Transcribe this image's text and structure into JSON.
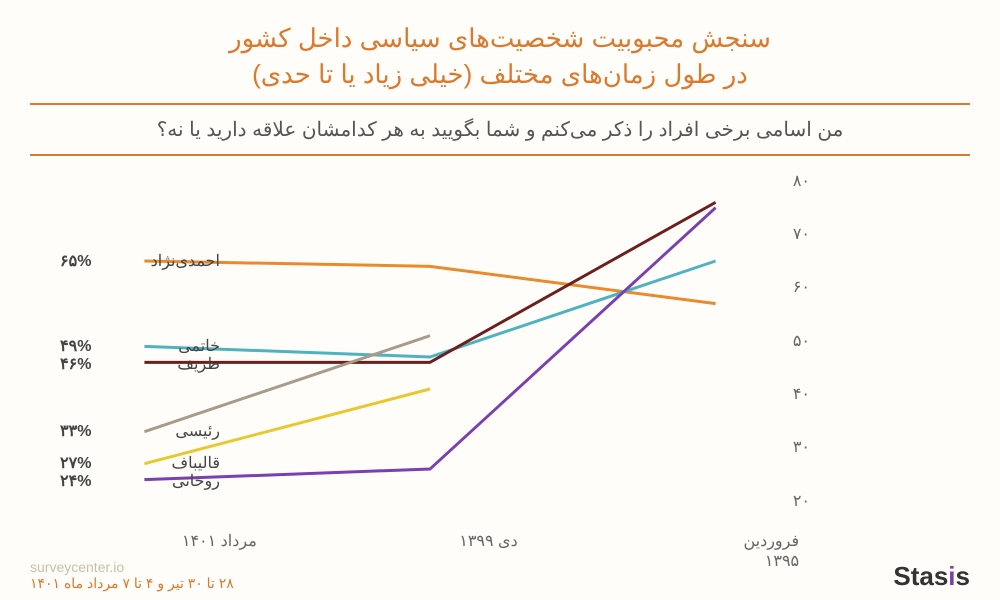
{
  "title_line1": "سنجش محبوبیت شخصیت‌های سیاسی داخل کشور",
  "title_line2": "در طول زمان‌های مختلف (خیلی زیاد یا تا حدی)",
  "subtitle": "من اسامی برخی افراد را ذکر می‌کنم و شما بگویید به هر کدامشان علاقه دارید یا نه؟",
  "footer_url": "surveycenter.io",
  "footer_date": "۲۸ تا ۳۰ تیر و ۴ تا ۷ مرداد ماه ۱۴۰۱",
  "logo_text": "Stasis",
  "chart": {
    "type": "line",
    "ylim": [
      20,
      80
    ],
    "ytick_step": 10,
    "yticks": [
      "۲۰",
      "۳۰",
      "۴۰",
      "۵۰",
      "۶۰",
      "۷۰",
      "۸۰"
    ],
    "x_categories": [
      "فروردین ۱۳۹۵",
      "دی ۱۳۹۹",
      "مرداد ۱۴۰۱"
    ],
    "x_positions_pct": [
      8,
      50,
      92
    ],
    "background_color": "#fefdf9",
    "line_width": 3,
    "title_color": "#d97a2e",
    "text_color": "#555555",
    "series": [
      {
        "name": "احمدی‌نژاد",
        "color": "#e88b2d",
        "values": [
          57,
          64,
          65
        ],
        "label_pct": "۶۵%",
        "label_y_offset": 0
      },
      {
        "name": "خاتمی",
        "color": "#4fb3bf",
        "values": [
          65,
          47,
          49
        ],
        "label_pct": "۴۹%",
        "label_y_offset": 0
      },
      {
        "name": "ظریف",
        "color": "#6b1f1f",
        "values": [
          76,
          46,
          46
        ],
        "label_pct": "۴۶%",
        "label_y_offset": 2
      },
      {
        "name": "رئیسی",
        "color": "#a89b87",
        "values": [
          null,
          51,
          33
        ],
        "label_pct": "۳۳%",
        "label_y_offset": 0
      },
      {
        "name": "قالیباف",
        "color": "#e8c82d",
        "values": [
          null,
          41,
          27
        ],
        "label_pct": "۲۷%",
        "label_y_offset": 0
      },
      {
        "name": "روحانی",
        "color": "#7a3fb0",
        "values": [
          75,
          26,
          24
        ],
        "label_pct": "۲۴%",
        "label_y_offset": 2
      }
    ]
  }
}
